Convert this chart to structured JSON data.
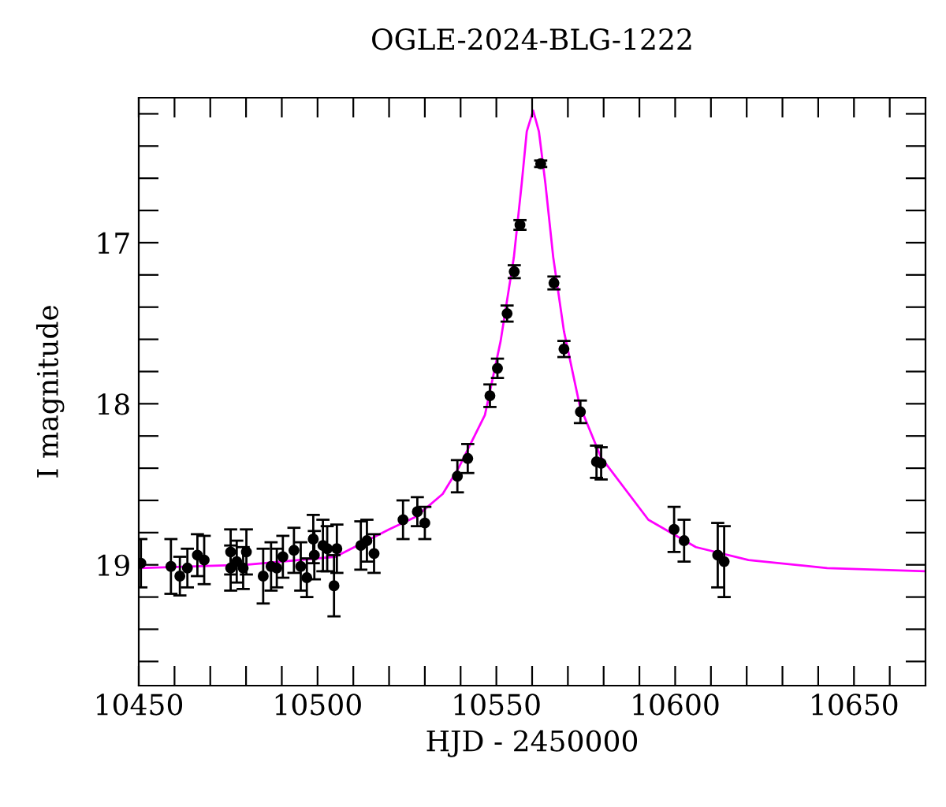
{
  "chart_data": {
    "type": "scatter",
    "title": "OGLE-2024-BLG-1222",
    "xlabel": "HJD - 2450000",
    "ylabel": "I magnitude",
    "xlim": [
      10450,
      10670
    ],
    "ylim": [
      19.75,
      16.1
    ],
    "xticks": [
      10450,
      {
        "value": 10460,
        "label": null
      },
      {
        "value": 10470,
        "label": null
      },
      {
        "value": 10480,
        "label": null
      },
      {
        "value": 10490,
        "label": null
      },
      10500,
      {
        "value": 10510,
        "label": null
      },
      {
        "value": 10520,
        "label": null
      },
      {
        "value": 10530,
        "label": null
      },
      {
        "value": 10540,
        "label": null
      },
      10550,
      {
        "value": 10560,
        "label": null
      },
      {
        "value": 10570,
        "label": null
      },
      {
        "value": 10580,
        "label": null
      },
      {
        "value": 10590,
        "label": null
      },
      10600,
      {
        "value": 10610,
        "label": null
      },
      {
        "value": 10620,
        "label": null
      },
      {
        "value": 10630,
        "label": null
      },
      {
        "value": 10640,
        "label": null
      },
      10650,
      {
        "value": 10660,
        "label": null
      }
    ],
    "yticks": [
      {
        "value": 16.2,
        "label": null
      },
      {
        "value": 16.4,
        "label": null
      },
      {
        "value": 16.6,
        "label": null
      },
      {
        "value": 16.8,
        "label": null
      },
      17,
      {
        "value": 17.2,
        "label": null
      },
      {
        "value": 17.4,
        "label": null
      },
      {
        "value": 17.6,
        "label": null
      },
      {
        "value": 17.8,
        "label": null
      },
      18,
      {
        "value": 18.2,
        "label": null
      },
      {
        "value": 18.4,
        "label": null
      },
      {
        "value": 18.6,
        "label": null
      },
      {
        "value": 18.8,
        "label": null
      },
      19,
      {
        "value": 19.2,
        "label": null
      },
      {
        "value": 19.4,
        "label": null
      },
      {
        "value": 19.6,
        "label": null
      }
    ],
    "grid": false,
    "legend": false,
    "marker": "circle",
    "series": [
      {
        "type": "scatter",
        "color": "#000000",
        "x": [
          10450.6,
          10459.0,
          10461.5,
          10463.6,
          10466.4,
          10468.3,
          10475.7,
          10475.7,
          10477.4,
          10480.1,
          10479.2,
          10484.8,
          10487.0,
          10488.6,
          10490.3,
          10493.4,
          10495.3,
          10497.0,
          10498.8,
          10499.1,
          10501.5,
          10502.7,
          10504.6,
          10505.4,
          10512.1,
          10513.8,
          10515.8,
          10523.9,
          10527.9,
          10530.0,
          10539.1,
          10542.0,
          10548.2,
          10550.3,
          10553.0,
          10555.0,
          10556.6,
          10562.4,
          10566.1,
          10568.9,
          10573.5,
          10578.0,
          10579.3,
          10599.7,
          10602.5,
          10611.9,
          10613.7
        ],
        "values": [
          18.99,
          19.01,
          19.07,
          19.02,
          18.94,
          18.97,
          18.92,
          19.02,
          18.98,
          18.92,
          19.02,
          19.07,
          19.01,
          19.02,
          18.95,
          18.91,
          19.01,
          19.08,
          18.84,
          18.94,
          18.88,
          18.9,
          19.13,
          18.9,
          18.88,
          18.85,
          18.93,
          18.72,
          18.67,
          18.74,
          18.45,
          18.34,
          17.95,
          17.78,
          17.44,
          17.18,
          16.89,
          16.51,
          17.25,
          17.66,
          18.05,
          18.36,
          18.37,
          18.78,
          18.85,
          18.94,
          18.98
        ],
        "errors": [
          0.15,
          0.17,
          0.12,
          0.12,
          0.13,
          0.15,
          0.14,
          0.14,
          0.13,
          0.14,
          0.13,
          0.17,
          0.15,
          0.12,
          0.13,
          0.14,
          0.15,
          0.12,
          0.15,
          0.15,
          0.16,
          0.14,
          0.19,
          0.15,
          0.15,
          0.13,
          0.12,
          0.12,
          0.09,
          0.1,
          0.1,
          0.09,
          0.07,
          0.06,
          0.05,
          0.04,
          0.03,
          0.02,
          0.04,
          0.05,
          0.07,
          0.1,
          0.1,
          0.14,
          0.13,
          0.2,
          0.22
        ]
      },
      {
        "type": "line",
        "color": "#ff00ff",
        "line_style": "solid",
        "marker": "none",
        "x": [
          10450,
          10480,
          10505,
          10520,
          10527.6,
          10535,
          10539.4,
          10546.8,
          10551.2,
          10554.9,
          10557.1,
          10558.5,
          10560.3,
          10561.9,
          10563.7,
          10565.9,
          10568.9,
          10573.3,
          10579.2,
          10592.5,
          10605.8,
          10620.5,
          10642.5,
          10670
        ],
        "values": [
          19.02,
          19.0,
          18.95,
          18.78,
          18.7,
          18.56,
          18.4,
          18.07,
          17.61,
          17.09,
          16.63,
          16.31,
          16.18,
          16.31,
          16.63,
          17.09,
          17.55,
          18.01,
          18.33,
          18.72,
          18.89,
          18.97,
          19.02,
          19.04
        ]
      }
    ]
  }
}
